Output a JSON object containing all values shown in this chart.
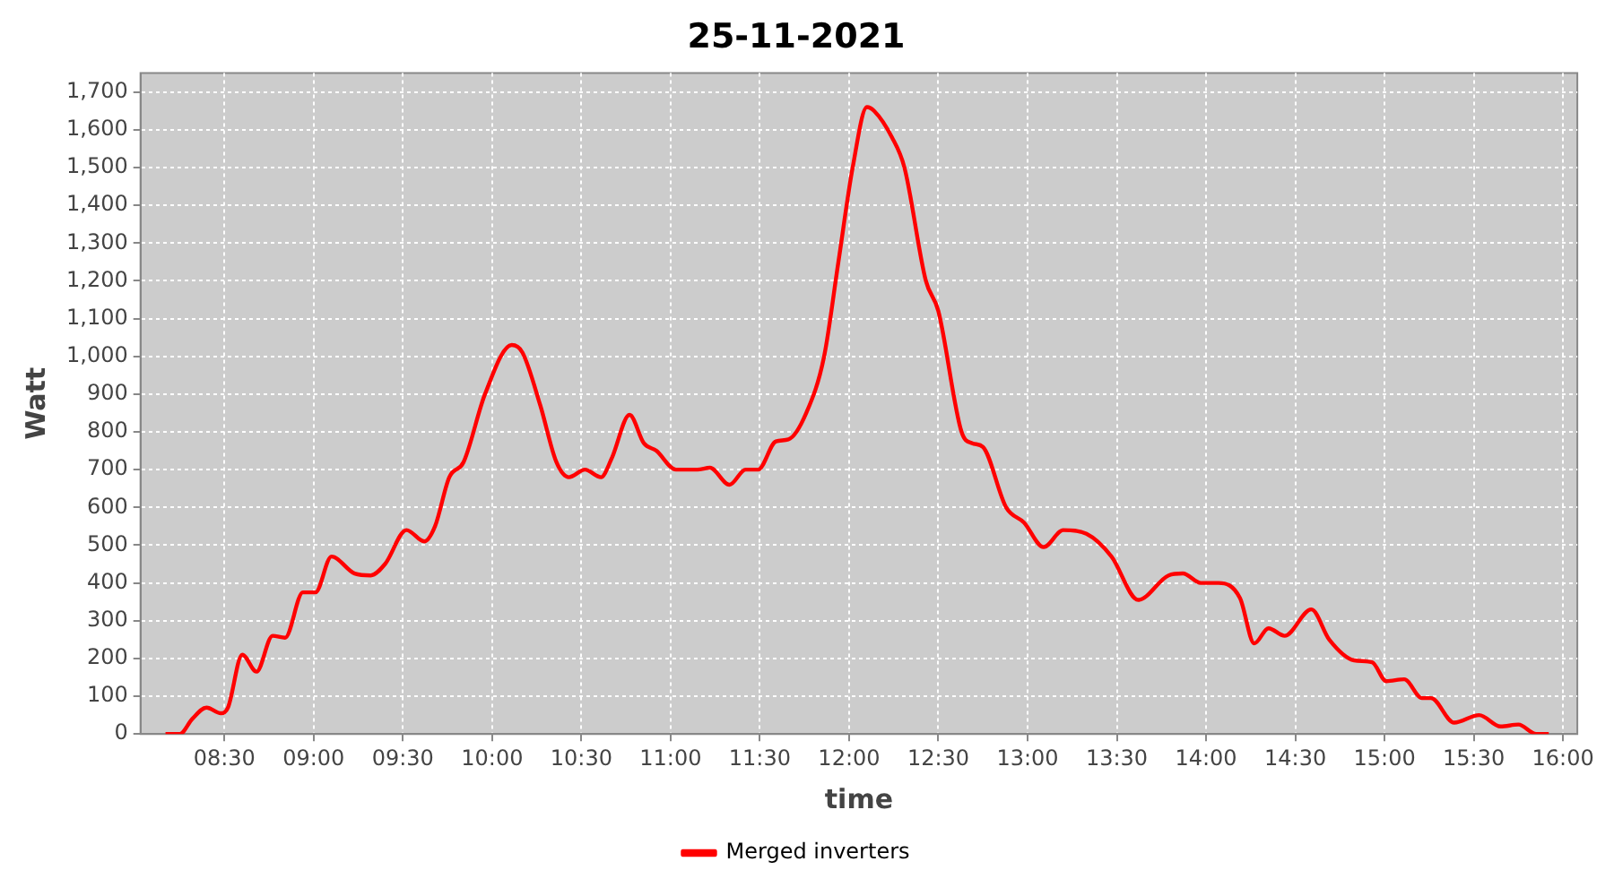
{
  "chart_data": {
    "type": "line",
    "title": "25-11-2021",
    "xlabel": "time",
    "ylabel": "Watt",
    "xlim": [
      8.03,
      16.08
    ],
    "xticks": [
      {
        "value": 8.5,
        "label": "08:30"
      },
      {
        "value": 9,
        "label": "09:00"
      },
      {
        "value": 9.5,
        "label": "09:30"
      },
      {
        "value": 10,
        "label": "10:00"
      },
      {
        "value": 10.5,
        "label": "10:30"
      },
      {
        "value": 11,
        "label": "11:00"
      },
      {
        "value": 11.5,
        "label": "11:30"
      },
      {
        "value": 12,
        "label": "12:00"
      },
      {
        "value": 12.5,
        "label": "12:30"
      },
      {
        "value": 13,
        "label": "13:00"
      },
      {
        "value": 13.5,
        "label": "13:30"
      },
      {
        "value": 14,
        "label": "14:00"
      },
      {
        "value": 14.5,
        "label": "14:30"
      },
      {
        "value": 15,
        "label": "15:00"
      },
      {
        "value": 15.5,
        "label": "15:30"
      },
      {
        "value": 16,
        "label": "16:00"
      }
    ],
    "ylim": [
      0,
      1750
    ],
    "yticks": [
      0,
      100,
      200,
      300,
      400,
      500,
      600,
      700,
      800,
      900,
      {
        "value": 1000,
        "label": "1,000"
      },
      {
        "value": 1100,
        "label": "1,100"
      },
      {
        "value": 1200,
        "label": "1,200"
      },
      {
        "value": 1300,
        "label": "1,300"
      },
      {
        "value": 1400,
        "label": "1,400"
      },
      {
        "value": 1500,
        "label": "1,500"
      },
      {
        "value": 1600,
        "label": "1,600"
      },
      {
        "value": 1700,
        "label": "1,700"
      }
    ],
    "grid": true,
    "legend": "bottom",
    "marker": "none",
    "line_style": "solid",
    "series": [
      {
        "name": "Merged inverters",
        "color": "#ff0000",
        "x": [
          8.17,
          8.25,
          8.32,
          8.4,
          8.48,
          8.52,
          8.6,
          8.68,
          8.77,
          8.84,
          8.94,
          9.01,
          9.1,
          9.23,
          9.32,
          9.4,
          9.52,
          9.62,
          9.68,
          9.76,
          9.84,
          9.96,
          10.11,
          10.17,
          10.27,
          10.36,
          10.43,
          10.52,
          10.61,
          10.67,
          10.77,
          10.85,
          10.92,
          11.03,
          11.15,
          11.22,
          11.33,
          11.42,
          11.49,
          11.59,
          11.66,
          11.76,
          11.86,
          11.94,
          12.02,
          12.1,
          12.14,
          12.24,
          12.31,
          12.43,
          12.5,
          12.63,
          12.69,
          12.75,
          12.88,
          12.98,
          13.09,
          13.2,
          13.33,
          13.47,
          13.62,
          13.79,
          13.87,
          13.97,
          14.07,
          14.19,
          14.27,
          14.35,
          14.44,
          14.59,
          14.69,
          14.83,
          14.93,
          15.01,
          15.11,
          15.21,
          15.26,
          15.39,
          15.53,
          15.65,
          15.75,
          15.85,
          15.92
        ],
        "values": [
          0,
          0,
          40,
          70,
          55,
          70,
          210,
          165,
          260,
          255,
          375,
          375,
          470,
          425,
          420,
          450,
          540,
          510,
          550,
          680,
          720,
          900,
          1030,
          1010,
          870,
          720,
          680,
          700,
          680,
          730,
          845,
          770,
          750,
          700,
          700,
          705,
          660,
          700,
          700,
          775,
          780,
          850,
          1000,
          1250,
          1500,
          1660,
          1650,
          1580,
          1500,
          1200,
          1120,
          800,
          770,
          760,
          600,
          560,
          495,
          540,
          530,
          470,
          355,
          420,
          425,
          400,
          400,
          360,
          240,
          280,
          260,
          330,
          250,
          195,
          190,
          140,
          145,
          95,
          95,
          30,
          50,
          20,
          25,
          0,
          0
        ]
      }
    ]
  }
}
